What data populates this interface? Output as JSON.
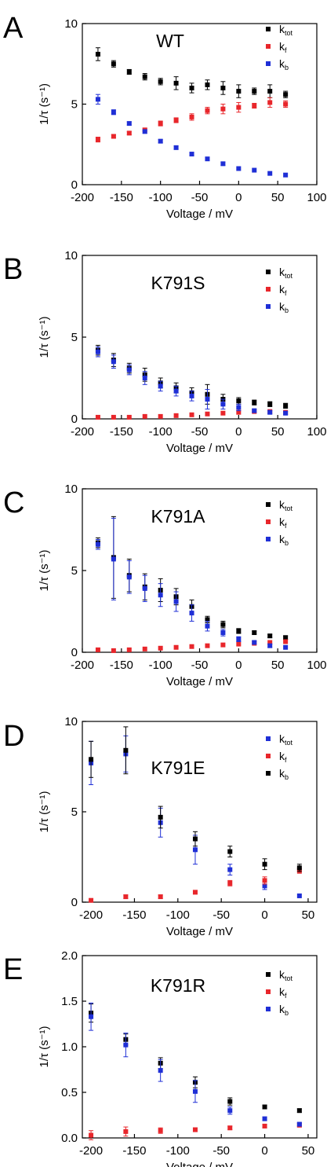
{
  "chart_data": [
    {
      "type": "scatter",
      "panel_letter": "A",
      "title": "WT",
      "xlabel": "Voltage / mV",
      "ylabel": "1/τ (s⁻¹)",
      "xlim": [
        -200,
        100
      ],
      "ylim": [
        0,
        10
      ],
      "xticks": [
        -200,
        -150,
        -100,
        -50,
        0,
        50,
        100
      ],
      "xtick_labels": [
        "-200",
        "-150",
        "-100",
        "-50",
        "0",
        "50",
        "100"
      ],
      "yticks": [
        0,
        5,
        10
      ],
      "ytick_labels": [
        "0",
        "5",
        "10"
      ],
      "legend_position": "top-right",
      "series": [
        {
          "name": "k",
          "sub": "tot",
          "color": "#000000",
          "x": [
            -180,
            -160,
            -140,
            -120,
            -100,
            -80,
            -60,
            -40,
            -20,
            0,
            20,
            40,
            60
          ],
          "y": [
            8.1,
            7.5,
            7.0,
            6.7,
            6.4,
            6.3,
            6.0,
            6.2,
            6.0,
            5.8,
            5.8,
            5.8,
            5.6
          ],
          "err": [
            0.4,
            0.2,
            0.15,
            0.2,
            0.2,
            0.4,
            0.3,
            0.3,
            0.4,
            0.4,
            0.2,
            0.4,
            0.2
          ]
        },
        {
          "name": "k",
          "sub": "f",
          "color": "#e8262b",
          "x": [
            -180,
            -160,
            -140,
            -120,
            -100,
            -80,
            -60,
            -40,
            -20,
            0,
            20,
            40,
            60
          ],
          "y": [
            2.8,
            3.0,
            3.2,
            3.4,
            3.8,
            4.0,
            4.2,
            4.6,
            4.7,
            4.8,
            4.9,
            5.1,
            5.0
          ],
          "err": [
            0.15,
            0.1,
            0.1,
            0.1,
            0.15,
            0.15,
            0.2,
            0.2,
            0.3,
            0.3,
            0.15,
            0.3,
            0.2
          ]
        },
        {
          "name": "k",
          "sub": "b",
          "color": "#1f2fd6",
          "x": [
            -180,
            -160,
            -140,
            -120,
            -100,
            -80,
            -60,
            -40,
            -20,
            0,
            20,
            40,
            60
          ],
          "y": [
            5.3,
            4.5,
            3.8,
            3.3,
            2.7,
            2.3,
            1.9,
            1.6,
            1.3,
            1.0,
            0.9,
            0.7,
            0.6
          ],
          "err": [
            0.3,
            0.15,
            0.1,
            0.1,
            0.1,
            0.1,
            0.1,
            0.1,
            0.1,
            0.05,
            0.05,
            0.05,
            0.05
          ]
        }
      ]
    },
    {
      "type": "scatter",
      "panel_letter": "B",
      "title": "K791S",
      "xlabel": "Voltage / mV",
      "ylabel": "1/τ (s⁻¹)",
      "xlim": [
        -200,
        100
      ],
      "ylim": [
        0,
        10
      ],
      "xticks": [
        -200,
        -150,
        -100,
        -50,
        0,
        50,
        100
      ],
      "xtick_labels": [
        "-200",
        "-150",
        "-100",
        "-50",
        "0",
        "50",
        "100"
      ],
      "yticks": [
        0,
        5,
        10
      ],
      "ytick_labels": [
        "0",
        "5",
        "10"
      ],
      "legend_position": "top-right",
      "series": [
        {
          "name": "k",
          "sub": "tot",
          "color": "#000000",
          "x": [
            -180,
            -160,
            -140,
            -120,
            -100,
            -80,
            -60,
            -40,
            -20,
            0,
            20,
            40,
            60
          ],
          "y": [
            4.2,
            3.6,
            3.1,
            2.7,
            2.2,
            1.9,
            1.6,
            1.5,
            1.2,
            1.1,
            1.0,
            0.9,
            0.8
          ],
          "err": [
            0.3,
            0.4,
            0.3,
            0.4,
            0.3,
            0.3,
            0.3,
            0.6,
            0.3,
            0.2,
            0.15,
            0.15,
            0.15
          ]
        },
        {
          "name": "k",
          "sub": "f",
          "color": "#e8262b",
          "x": [
            -180,
            -160,
            -140,
            -120,
            -100,
            -80,
            -60,
            -40,
            -20,
            0,
            20,
            40,
            60
          ],
          "y": [
            0.1,
            0.1,
            0.1,
            0.15,
            0.15,
            0.2,
            0.25,
            0.3,
            0.35,
            0.4,
            0.45,
            0.45,
            0.4
          ],
          "err": [
            0.05,
            0.05,
            0.05,
            0.05,
            0.05,
            0.05,
            0.05,
            0.05,
            0.05,
            0.05,
            0.05,
            0.05,
            0.05
          ]
        },
        {
          "name": "k",
          "sub": "b",
          "color": "#1f2fd6",
          "x": [
            -180,
            -160,
            -140,
            -120,
            -100,
            -80,
            -60,
            -40,
            -20,
            0,
            20,
            40,
            60
          ],
          "y": [
            4.1,
            3.5,
            3.0,
            2.5,
            2.0,
            1.7,
            1.4,
            1.2,
            0.9,
            0.7,
            0.5,
            0.4,
            0.35
          ],
          "err": [
            0.3,
            0.4,
            0.3,
            0.4,
            0.3,
            0.3,
            0.3,
            0.6,
            0.3,
            0.2,
            0.1,
            0.1,
            0.1
          ]
        }
      ]
    },
    {
      "type": "scatter",
      "panel_letter": "C",
      "title": "K791A",
      "xlabel": "Voltage / mV",
      "ylabel": "1/τ (s⁻¹)",
      "xlim": [
        -200,
        100
      ],
      "ylim": [
        0,
        10
      ],
      "xticks": [
        -200,
        -150,
        -100,
        -50,
        0,
        50,
        100
      ],
      "xtick_labels": [
        "-200",
        "-150",
        "-100",
        "-50",
        "0",
        "50",
        "100"
      ],
      "yticks": [
        0,
        5,
        10
      ],
      "ytick_labels": [
        "0",
        "5",
        "10"
      ],
      "legend_position": "top-right",
      "series": [
        {
          "name": "k",
          "sub": "tot",
          "color": "#000000",
          "x": [
            -180,
            -160,
            -140,
            -120,
            -100,
            -80,
            -60,
            -40,
            -20,
            0,
            20,
            40,
            60
          ],
          "y": [
            6.7,
            5.8,
            4.7,
            4.0,
            3.8,
            3.4,
            2.8,
            2.0,
            1.7,
            1.3,
            1.2,
            1.0,
            0.9
          ],
          "err": [
            0.3,
            2.5,
            1.0,
            0.8,
            0.7,
            0.5,
            0.4,
            0.2,
            0.2,
            0.15,
            0.1,
            0.1,
            0.1
          ]
        },
        {
          "name": "k",
          "sub": "f",
          "color": "#e8262b",
          "x": [
            -180,
            -160,
            -140,
            -120,
            -100,
            -80,
            -60,
            -40,
            -20,
            0,
            20,
            40,
            60
          ],
          "y": [
            0.15,
            0.1,
            0.15,
            0.2,
            0.25,
            0.3,
            0.35,
            0.4,
            0.45,
            0.5,
            0.55,
            0.6,
            0.65
          ],
          "err": [
            0.05,
            0.05,
            0.05,
            0.05,
            0.05,
            0.05,
            0.05,
            0.05,
            0.05,
            0.05,
            0.05,
            0.05,
            0.05
          ]
        },
        {
          "name": "k",
          "sub": "b",
          "color": "#1f2fd6",
          "x": [
            -180,
            -160,
            -140,
            -120,
            -100,
            -80,
            -60,
            -40,
            -20,
            0,
            20,
            40,
            60
          ],
          "y": [
            6.6,
            5.7,
            4.6,
            3.9,
            3.5,
            3.1,
            2.4,
            1.6,
            1.2,
            0.8,
            0.6,
            0.4,
            0.3
          ],
          "err": [
            0.3,
            2.5,
            1.0,
            0.8,
            0.7,
            0.6,
            0.5,
            0.3,
            0.2,
            0.15,
            0.1,
            0.1,
            0.05
          ]
        }
      ]
    },
    {
      "type": "scatter",
      "panel_letter": "D",
      "title": "K791E",
      "xlabel": "Voltage / mV",
      "ylabel": "1/τ (s⁻¹)",
      "xlim": [
        -210,
        60
      ],
      "ylim": [
        0,
        10
      ],
      "xticks": [
        -200,
        -150,
        -100,
        -50,
        0,
        50
      ],
      "xtick_labels": [
        "-200",
        "-150",
        "-100",
        "-50",
        "0",
        "50"
      ],
      "yticks": [
        0,
        5,
        10
      ],
      "ytick_labels": [
        "0",
        "5",
        "10"
      ],
      "legend_position": "top-right",
      "series": [
        {
          "name": "k",
          "sub": "tot",
          "color": "#1f2fd6",
          "x": [
            -200,
            -160,
            -120,
            -80,
            -40,
            0,
            40
          ],
          "y": [
            7.7,
            8.2,
            4.4,
            2.9,
            1.8,
            0.9,
            0.35
          ],
          "err": [
            1.2,
            1.0,
            0.8,
            0.8,
            0.3,
            0.2,
            0.05
          ]
        },
        {
          "name": "k",
          "sub": "f",
          "color": "#e8262b",
          "x": [
            -200,
            -160,
            -120,
            -80,
            -40,
            0,
            40
          ],
          "y": [
            0.1,
            0.3,
            0.3,
            0.55,
            1.05,
            1.2,
            1.75
          ],
          "err": [
            0.05,
            0.1,
            0.1,
            0.1,
            0.15,
            0.2,
            0.15
          ]
        },
        {
          "name": "k",
          "sub": "b",
          "color": "#000000",
          "x": [
            -200,
            -160,
            -120,
            -80,
            -40,
            0,
            40
          ],
          "y": [
            7.9,
            8.4,
            4.7,
            3.5,
            2.8,
            2.1,
            1.9
          ],
          "err": [
            1.0,
            1.3,
            0.6,
            0.4,
            0.3,
            0.3,
            0.2
          ]
        }
      ]
    },
    {
      "type": "scatter",
      "panel_letter": "E",
      "title": "K791R",
      "xlabel": "Voltage / mV",
      "ylabel": "1/τ (s⁻¹)",
      "xlim": [
        -210,
        60
      ],
      "ylim": [
        0,
        2
      ],
      "xticks": [
        -200,
        -150,
        -100,
        -50,
        0,
        50
      ],
      "xtick_labels": [
        "-200",
        "-150",
        "-100",
        "-50",
        "0",
        "50"
      ],
      "yticks": [
        0,
        0.5,
        1.0,
        1.5,
        2.0
      ],
      "ytick_labels": [
        "0.0",
        "0.5",
        "1.0",
        "1.5",
        "2.0"
      ],
      "legend_position": "top-right",
      "series": [
        {
          "name": "k",
          "sub": "tot",
          "color": "#000000",
          "x": [
            -200,
            -160,
            -120,
            -80,
            -40,
            0,
            40
          ],
          "y": [
            1.37,
            1.08,
            0.82,
            0.61,
            0.4,
            0.34,
            0.3
          ],
          "err": [
            0.1,
            0.06,
            0.06,
            0.06,
            0.04,
            0.02,
            0.02
          ]
        },
        {
          "name": "k",
          "sub": "f",
          "color": "#e8262b",
          "x": [
            -200,
            -160,
            -120,
            -80,
            -40,
            0,
            40
          ],
          "y": [
            0.03,
            0.07,
            0.08,
            0.09,
            0.11,
            0.13,
            0.14
          ],
          "err": [
            0.05,
            0.05,
            0.03,
            0.02,
            0.02,
            0.02,
            0.02
          ]
        },
        {
          "name": "k",
          "sub": "b",
          "color": "#1f2fd6",
          "x": [
            -200,
            -160,
            -120,
            -80,
            -40,
            0,
            40
          ],
          "y": [
            1.33,
            1.02,
            0.74,
            0.51,
            0.3,
            0.21,
            0.15
          ],
          "err": [
            0.15,
            0.13,
            0.12,
            0.12,
            0.04,
            0.02,
            0.02
          ]
        }
      ]
    }
  ]
}
